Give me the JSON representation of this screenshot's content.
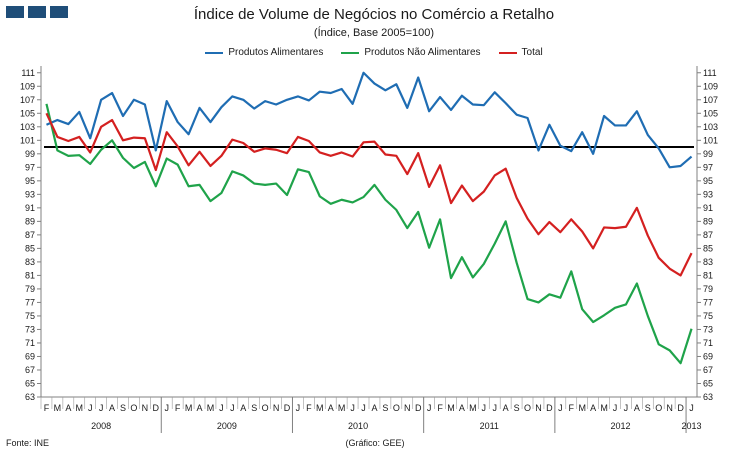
{
  "header": {
    "title": "Índice de Volume de Negócios no Comércio a Retalho",
    "subtitle": "(Índice, Base 2005=100)"
  },
  "footer": {
    "source": "Fonte: INE",
    "credit": "(Gráfico: GEE)"
  },
  "chart_data": {
    "type": "line",
    "title": "Índice de Volume de Negócios no Comércio a Retalho",
    "subtitle": "(Índice, Base 2005=100)",
    "month_labels": [
      "F",
      "M",
      "A",
      "M",
      "J",
      "J",
      "A",
      "S",
      "O",
      "N",
      "D",
      "J",
      "F",
      "M",
      "A",
      "M",
      "J",
      "J",
      "A",
      "S",
      "O",
      "N",
      "D",
      "J",
      "F",
      "M",
      "A",
      "M",
      "J",
      "J",
      "A",
      "S",
      "O",
      "N",
      "D",
      "J",
      "F",
      "M",
      "A",
      "M",
      "J",
      "J",
      "A",
      "S",
      "O",
      "N",
      "D",
      "J",
      "F",
      "M",
      "A",
      "M",
      "J",
      "J",
      "A",
      "S",
      "O",
      "N",
      "D",
      "J"
    ],
    "years": [
      {
        "label": "2008",
        "first": 0,
        "last": 10
      },
      {
        "label": "2009",
        "first": 11,
        "last": 22
      },
      {
        "label": "2010",
        "first": 23,
        "last": 34
      },
      {
        "label": "2011",
        "first": 35,
        "last": 46
      },
      {
        "label": "2012",
        "first": 47,
        "last": 58
      },
      {
        "label": "2013",
        "first": 59,
        "last": 59
      }
    ],
    "y_ticks": [
      63,
      65,
      67,
      69,
      71,
      73,
      75,
      77,
      79,
      81,
      83,
      85,
      87,
      89,
      91,
      93,
      95,
      97,
      99,
      101,
      103,
      105,
      107,
      109,
      111
    ],
    "ylim": [
      63,
      112
    ],
    "reference_line": 100,
    "grid": false,
    "legend_position": "top-center",
    "series": [
      {
        "name": "Produtos Alimentares",
        "color": "#1f6db3",
        "values": [
          103.3,
          104.0,
          103.4,
          105.2,
          101.3,
          107.0,
          108.0,
          104.6,
          107.0,
          106.3,
          99.5,
          106.8,
          103.7,
          101.9,
          105.8,
          103.7,
          105.9,
          107.5,
          107.0,
          105.7,
          106.8,
          106.3,
          107.0,
          107.5,
          106.9,
          108.2,
          108.0,
          108.6,
          106.4,
          111.0,
          109.4,
          108.4,
          109.3,
          105.8,
          110.3,
          105.3,
          107.4,
          105.5,
          107.6,
          106.3,
          106.2,
          108.1,
          106.5,
          104.8,
          104.3,
          99.5,
          103.3,
          100.2,
          99.4,
          102.2,
          99.0,
          104.6,
          103.2,
          103.2,
          105.3,
          101.8,
          99.8,
          97.0,
          97.2,
          98.6
        ]
      },
      {
        "name": "Produtos Não Alimentares",
        "color": "#1fa34a",
        "values": [
          106.4,
          99.5,
          98.7,
          98.8,
          97.5,
          99.6,
          101.0,
          98.4,
          96.9,
          97.8,
          94.2,
          98.3,
          97.4,
          94.2,
          94.4,
          92.0,
          93.2,
          96.4,
          95.8,
          94.6,
          94.4,
          94.6,
          92.9,
          96.7,
          96.3,
          92.7,
          91.6,
          92.2,
          91.8,
          92.6,
          94.4,
          92.2,
          90.7,
          88.0,
          90.4,
          85.1,
          89.3,
          80.6,
          83.7,
          80.7,
          82.7,
          85.7,
          89.0,
          82.9,
          77.5,
          77.0,
          78.2,
          77.7,
          81.6,
          76.0,
          74.1,
          75.1,
          76.2,
          76.7,
          79.8,
          75.0,
          70.8,
          69.9,
          68.0,
          73.1
        ]
      },
      {
        "name": "Total",
        "color": "#d42020",
        "values": [
          105.0,
          101.5,
          100.9,
          101.5,
          99.2,
          103.0,
          104.0,
          101.0,
          101.4,
          101.3,
          96.6,
          102.2,
          100.1,
          97.3,
          99.3,
          97.2,
          98.7,
          101.1,
          100.6,
          99.3,
          99.8,
          99.6,
          99.1,
          101.5,
          100.9,
          99.2,
          98.7,
          99.2,
          98.6,
          100.7,
          100.8,
          98.9,
          98.7,
          96.0,
          99.1,
          94.1,
          97.3,
          91.7,
          94.3,
          92.0,
          93.4,
          95.8,
          96.8,
          92.5,
          89.4,
          87.1,
          88.9,
          87.4,
          89.3,
          87.5,
          85.0,
          88.1,
          88.0,
          88.2,
          91.0,
          86.9,
          83.6,
          82.0,
          81.0,
          84.3
        ]
      }
    ]
  }
}
